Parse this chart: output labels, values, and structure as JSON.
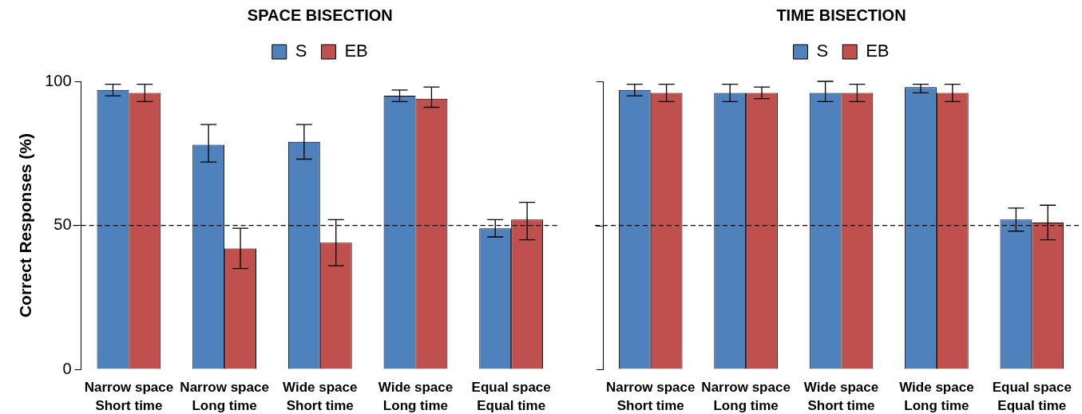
{
  "chart_data": [
    {
      "type": "bar",
      "title": "SPACE BISECTION",
      "ylabel": "Correct Responses (%)",
      "categories": [
        "Narrow space\nShort time",
        "Narrow space\nLong time",
        "Wide space\nShort time",
        "Wide space\nLong time",
        "Equal space\nEqual time"
      ],
      "series": [
        {
          "name": "S",
          "color": "#4f81bd",
          "values": [
            97,
            78,
            79,
            95,
            49
          ],
          "errors": [
            [
              95,
              99
            ],
            [
              72,
              85
            ],
            [
              73,
              85
            ],
            [
              93,
              97
            ],
            [
              46,
              52
            ]
          ]
        },
        {
          "name": "EB",
          "color": "#c0504d",
          "values": [
            96,
            42,
            44,
            94,
            52
          ],
          "errors": [
            [
              93,
              99
            ],
            [
              35,
              49
            ],
            [
              36,
              52
            ],
            [
              91,
              98
            ],
            [
              45,
              58
            ]
          ]
        }
      ],
      "ylim": [
        0,
        100
      ],
      "yticks": [
        0,
        50,
        100
      ],
      "grid": false,
      "legend": "top",
      "ref_lines": [
        {
          "axis": "y",
          "value": 50,
          "line_style": "dashed",
          "color": "#000000"
        }
      ]
    },
    {
      "type": "bar",
      "title": "TIME BISECTION",
      "categories": [
        "Narrow space\nShort time",
        "Narrow space\nLong time",
        "Wide space\nShort time",
        "Wide space\nLong time",
        "Equal space\nEqual time"
      ],
      "series": [
        {
          "name": "S",
          "color": "#4f81bd",
          "values": [
            97,
            96,
            96,
            98,
            52
          ],
          "errors": [
            [
              95,
              99
            ],
            [
              93,
              99
            ],
            [
              93,
              100
            ],
            [
              96,
              99
            ],
            [
              48,
              56
            ]
          ]
        },
        {
          "name": "EB",
          "color": "#c0504d",
          "values": [
            96,
            96,
            96,
            96,
            51
          ],
          "errors": [
            [
              93,
              99
            ],
            [
              94,
              98
            ],
            [
              93,
              99
            ],
            [
              93,
              99
            ],
            [
              45,
              57
            ]
          ]
        }
      ],
      "ylim": [
        0,
        100
      ],
      "yticks": [
        {
          "value": 0,
          "label": null
        },
        {
          "value": 50,
          "label": null
        },
        {
          "value": 100,
          "label": null
        }
      ],
      "tick_labels": "x",
      "grid": false,
      "legend": "top",
      "ref_lines": [
        {
          "axis": "y",
          "value": 50,
          "line_style": "dashed",
          "color": "#000000"
        }
      ]
    }
  ]
}
